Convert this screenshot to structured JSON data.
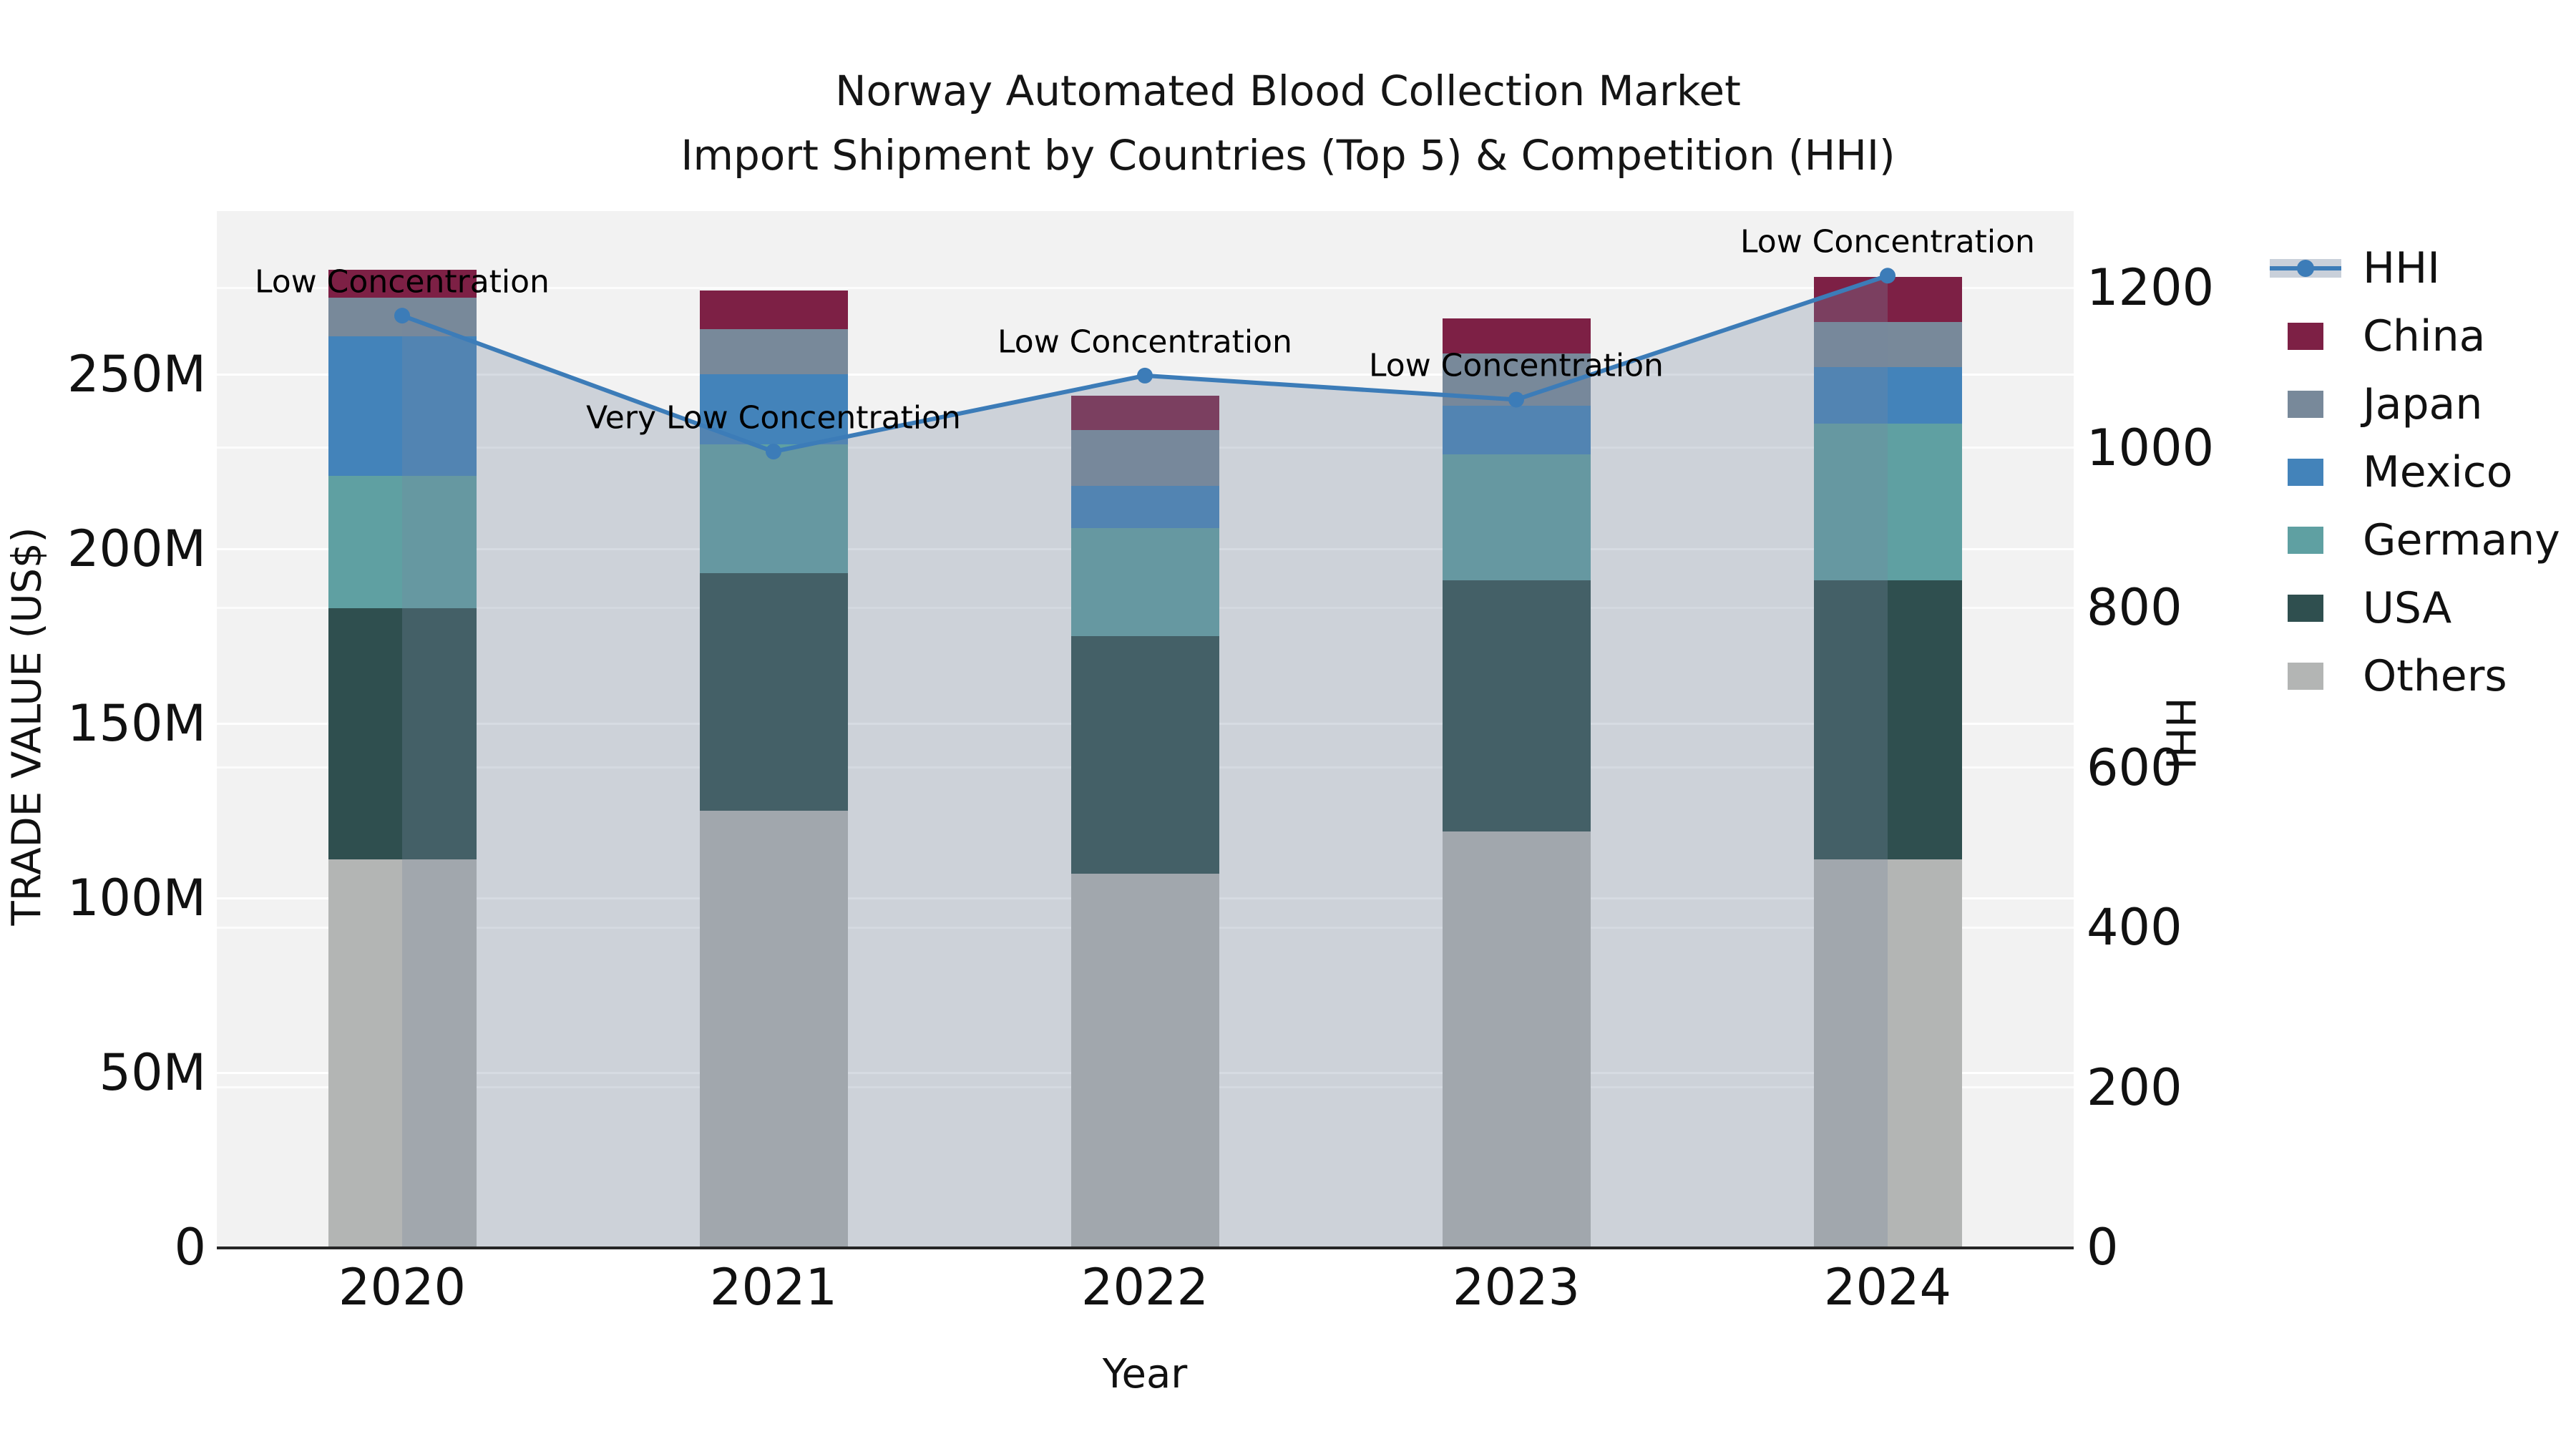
{
  "title": {
    "line1": "Norway Automated Blood Collection Market",
    "line2": "Import Shipment by Countries (Top 5) & Competition (HHI)"
  },
  "chart_data": {
    "type": "bar",
    "subtype": "stacked-bar-with-line",
    "categories": [
      "2020",
      "2021",
      "2022",
      "2023",
      "2024"
    ],
    "series": [
      {
        "name": "Others",
        "color": "#b3b5b4",
        "values": [
          111,
          125,
          107,
          119,
          111
        ]
      },
      {
        "name": "USA",
        "color": "#2f4f4f",
        "values": [
          72,
          68,
          68,
          72,
          80
        ]
      },
      {
        "name": "Germany",
        "color": "#5fa0a2",
        "values": [
          38,
          37,
          31,
          36,
          45
        ]
      },
      {
        "name": "Mexico",
        "color": "#4383ba",
        "values": [
          40,
          20,
          12,
          14,
          16
        ]
      },
      {
        "name": "Japan",
        "color": "#78899a",
        "values": [
          11,
          13,
          16,
          15,
          13
        ]
      },
      {
        "name": "China",
        "color": "#7d2045",
        "values": [
          8,
          11,
          10,
          10,
          13
        ]
      }
    ],
    "totals": [
      280,
      274,
      244,
      266,
      278
    ],
    "line_series": {
      "name": "HHI",
      "color": "#3c7cb8",
      "fill_color": "rgba(120,135,160,0.30)",
      "values": [
        1165,
        995,
        1090,
        1060,
        1215
      ]
    },
    "annotations": [
      "Low Concentration",
      "Very Low Concentration",
      "Low Concentration",
      "Low Concentration",
      "Low Concentration"
    ],
    "left_axis": {
      "label": "TRADE VALUE (US$)",
      "ticks": [
        "0",
        "50M",
        "100M",
        "150M",
        "200M",
        "250M"
      ],
      "tick_values": [
        0,
        50,
        100,
        150,
        200,
        250
      ],
      "range_max": 297
    },
    "right_axis": {
      "label": "HHI",
      "ticks": [
        "0",
        "200",
        "400",
        "600",
        "800",
        "1000",
        "1200"
      ],
      "tick_values": [
        0,
        200,
        400,
        600,
        800,
        1000,
        1200
      ],
      "range_max": 1296
    },
    "x_axis": {
      "label": "Year"
    },
    "legend": {
      "entries": [
        "HHI",
        "China",
        "Japan",
        "Mexico",
        "Germany",
        "USA",
        "Others"
      ],
      "position": "right"
    },
    "grid": true,
    "plot_background": "#f2f2f2"
  }
}
